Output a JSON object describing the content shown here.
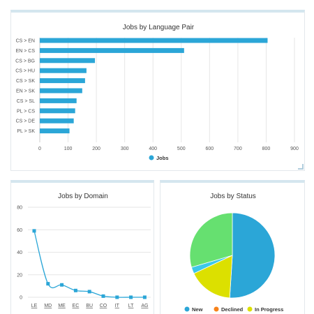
{
  "chart_data": [
    {
      "type": "bar",
      "title": "Jobs by Language Pair",
      "orientation": "horizontal",
      "categories": [
        "CS > EN",
        "EN > CS",
        "CS > BG",
        "CS > HU",
        "CS > SK",
        "EN > SK",
        "CS > SL",
        "PL > CS",
        "CS > DE",
        "PL > SK"
      ],
      "series": [
        {
          "name": "Jobs",
          "values": [
            805,
            510,
            195,
            165,
            160,
            150,
            130,
            125,
            120,
            105
          ]
        }
      ],
      "xlim": [
        0,
        900
      ],
      "xticks": [
        "0",
        "100",
        "200",
        "300",
        "400",
        "500",
        "600",
        "700",
        "800",
        "900"
      ],
      "grid": true,
      "legend_position": "bottom",
      "colors": {
        "bar": "#2ba6d7"
      }
    },
    {
      "type": "line",
      "title": "Jobs by Domain",
      "categories": [
        "LE",
        "MD",
        "ME",
        "EC",
        "BU",
        "CO",
        "IT",
        "LT",
        "AG"
      ],
      "series": [
        {
          "values": [
            59,
            12,
            11,
            6,
            5,
            1,
            0,
            0,
            0
          ]
        }
      ],
      "ylim": [
        0,
        80
      ],
      "yticks": [
        "0",
        "20",
        "40",
        "60",
        "80"
      ],
      "grid": true,
      "colors": {
        "line": "#2ba6d7"
      }
    },
    {
      "type": "pie",
      "title": "Jobs by Status",
      "slices": [
        {
          "label": "New",
          "value": 51,
          "color": "#2ba6d7"
        },
        {
          "label": "Declined",
          "value": 0,
          "color": "#f7821b"
        },
        {
          "label": "In Progress",
          "value": 17,
          "color": "#dce000"
        },
        {
          "label": "",
          "value": 2.5,
          "color": "#3cc8e8"
        },
        {
          "label": "",
          "value": 29.5,
          "color": "#66e070"
        }
      ],
      "legend_position": "bottom"
    }
  ]
}
